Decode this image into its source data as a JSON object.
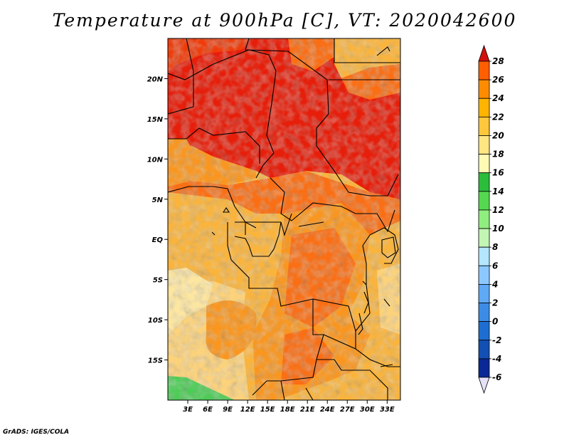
{
  "title": "Temperature at 900hPa [C], VT: 2020042600",
  "footer": "GrADS: IGES/COLA",
  "map": {
    "lon_range": [
      0,
      35
    ],
    "lat_range": [
      -20,
      25
    ],
    "lat_ticks": [
      "20N",
      "15N",
      "10N",
      "5N",
      "EQ",
      "5S",
      "10S",
      "15S"
    ],
    "lat_values": [
      20,
      15,
      10,
      5,
      0,
      -5,
      -10,
      -15
    ],
    "lon_ticks": [
      "3E",
      "6E",
      "9E",
      "12E",
      "15E",
      "18E",
      "21E",
      "24E",
      "27E",
      "30E",
      "33E"
    ],
    "lon_values": [
      3,
      6,
      9,
      12,
      15,
      18,
      21,
      24,
      27,
      30,
      33
    ],
    "variable": "Temperature",
    "level": "900hPa",
    "unit": "C",
    "valid_time": "2020042600"
  },
  "colorbar": {
    "labels": [
      "28",
      "26",
      "24",
      "22",
      "20",
      "18",
      "16",
      "14",
      "12",
      "10",
      "8",
      "6",
      "4",
      "2",
      "0",
      "-2",
      "-4",
      "-6"
    ],
    "colors": [
      "#f01e1e",
      "#ff5f00",
      "#ff8c00",
      "#ffb400",
      "#ffc83c",
      "#ffe682",
      "#fffab4",
      "#2bbd3c",
      "#55d850",
      "#90ee80",
      "#c3f5b4",
      "#b4e6ff",
      "#8cc8ff",
      "#5fa9f5",
      "#3c8ce6",
      "#1e6ed2",
      "#1450b4",
      "#0a2896",
      "#050a6e"
    ],
    "top_color": "#d20f0f",
    "bottom_color": "#e6e0f8"
  },
  "colors": {
    "hot": "#e61e0a",
    "warm": "#fa6e14",
    "orange": "#fa961e",
    "yellow_orange": "#fab43c",
    "light_yellow": "#fcd27a",
    "pale": "#fde6a0",
    "green": "#4ccc55"
  }
}
